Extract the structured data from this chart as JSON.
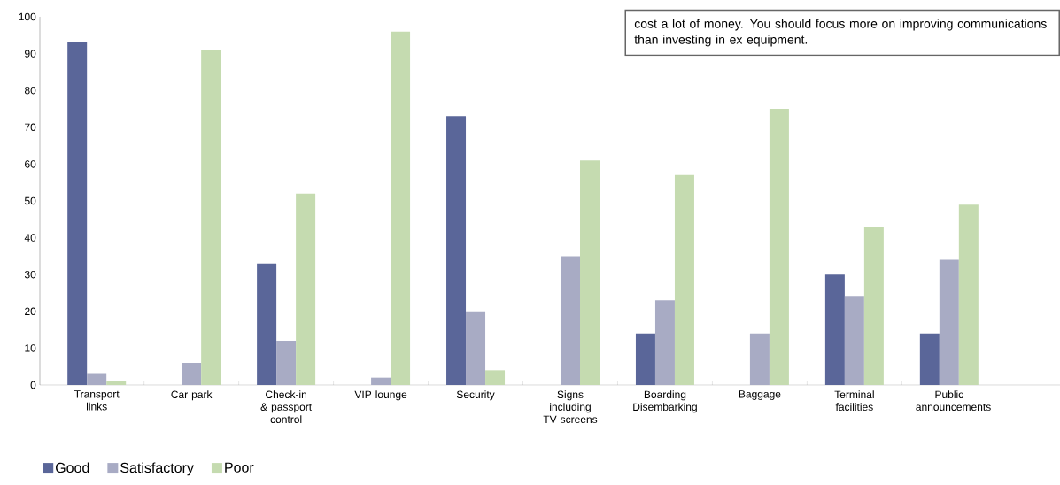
{
  "chart_data": {
    "type": "bar",
    "categories": [
      "Transport links",
      "Car park",
      "Check-in & passport control",
      "VIP lounge",
      "Security",
      "Signs including TV screens",
      "Boarding Disembarking",
      "Baggage",
      "Terminal facilities",
      "Public announcements"
    ],
    "series": [
      {
        "name": "Good",
        "color": "#5a6699",
        "values": [
          93,
          0,
          33,
          0,
          73,
          0,
          14,
          0,
          30,
          14
        ]
      },
      {
        "name": "Satisfactory",
        "color": "#a8abc4",
        "values": [
          3,
          6,
          12,
          2,
          20,
          35,
          23,
          14,
          24,
          34
        ]
      },
      {
        "name": "Poor",
        "color": "#c5dbb0",
        "values": [
          1,
          91,
          52,
          96,
          4,
          61,
          57,
          75,
          43,
          49
        ]
      }
    ],
    "ylim": [
      0,
      100
    ],
    "yticks": [
      0,
      10,
      20,
      30,
      40,
      50,
      60,
      70,
      80,
      90,
      100
    ],
    "legend": "bottom left",
    "annotations": [
      "cost a lot of money. You should focus more on improving communications than investing in ex equipment."
    ]
  }
}
